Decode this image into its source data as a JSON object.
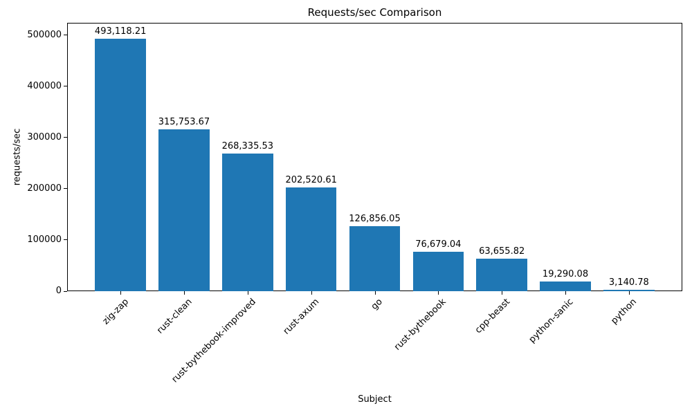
{
  "chart_data": {
    "type": "bar",
    "title": "Requests/sec Comparison",
    "xlabel": "Subject",
    "ylabel": "requests/sec",
    "categories": [
      "zig-zap",
      "rust-clean",
      "rust-bythebook-improved",
      "rust-axum",
      "go",
      "rust-bythebook",
      "cpp-beast",
      "python-sanic",
      "python"
    ],
    "values": [
      493118.21,
      315753.67,
      268335.53,
      202520.61,
      126856.05,
      76679.04,
      63655.82,
      19290.08,
      3140.78
    ],
    "value_labels": [
      "493,118.21",
      "315,753.67",
      "268,335.53",
      "202,520.61",
      "126,856.05",
      "76,679.04",
      "63,655.82",
      "19,290.08",
      "3,140.78"
    ],
    "yticks": [
      0,
      100000,
      200000,
      300000,
      400000,
      500000
    ],
    "ytick_labels": [
      "0",
      "100000",
      "200000",
      "300000",
      "400000",
      "500000"
    ],
    "ylim": [
      0,
      524000
    ],
    "bar_color": "#1f77b4",
    "background_color": "#ffffff",
    "text_color": "#000000",
    "grid": false,
    "legend": null,
    "xtick_rotation_deg": 45
  }
}
